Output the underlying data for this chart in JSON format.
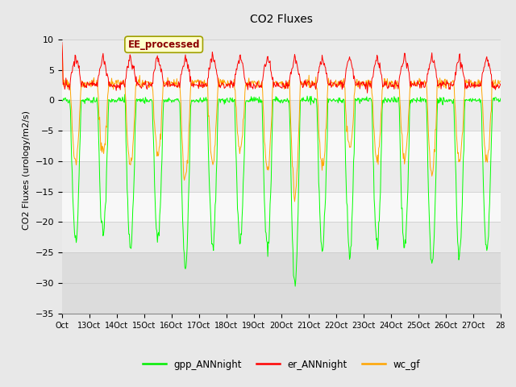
{
  "title": "CO2 Fluxes",
  "ylabel": "CO2 Fluxes (urology/m2/s)",
  "ylim": [
    -35,
    12
  ],
  "yticks": [
    10,
    5,
    0,
    -5,
    -10,
    -15,
    -20,
    -25,
    -30,
    -35
  ],
  "x_labels": [
    "Oct",
    "13Oct",
    "14Oct",
    "15Oct",
    "16Oct",
    "17Oct",
    "18Oct",
    "19Oct",
    "20Oct",
    "21Oct",
    "22Oct",
    "23Oct",
    "24Oct",
    "25Oct",
    "26Oct",
    "27Oct",
    "28"
  ],
  "annotation_text": "EE_processed",
  "annotation_color": "#8B0000",
  "annotation_bg": "#FFFFCC",
  "annotation_edge": "#A0A000",
  "line_colors": {
    "gpp_ANNnight": "#00FF00",
    "er_ANNnight": "#FF0000",
    "wc_gf": "#FFA500"
  },
  "legend_labels": [
    "gpp_ANNnight",
    "er_ANNnight",
    "wc_gf"
  ],
  "legend_colors": [
    "#00EE00",
    "#FF0000",
    "#FFA500"
  ],
  "background_color": "#E8E8E8",
  "band_light": "#F5F5F5",
  "band_dark": "#E0E0E0",
  "n_days": 16,
  "points_per_day": 48,
  "seed": 12345
}
